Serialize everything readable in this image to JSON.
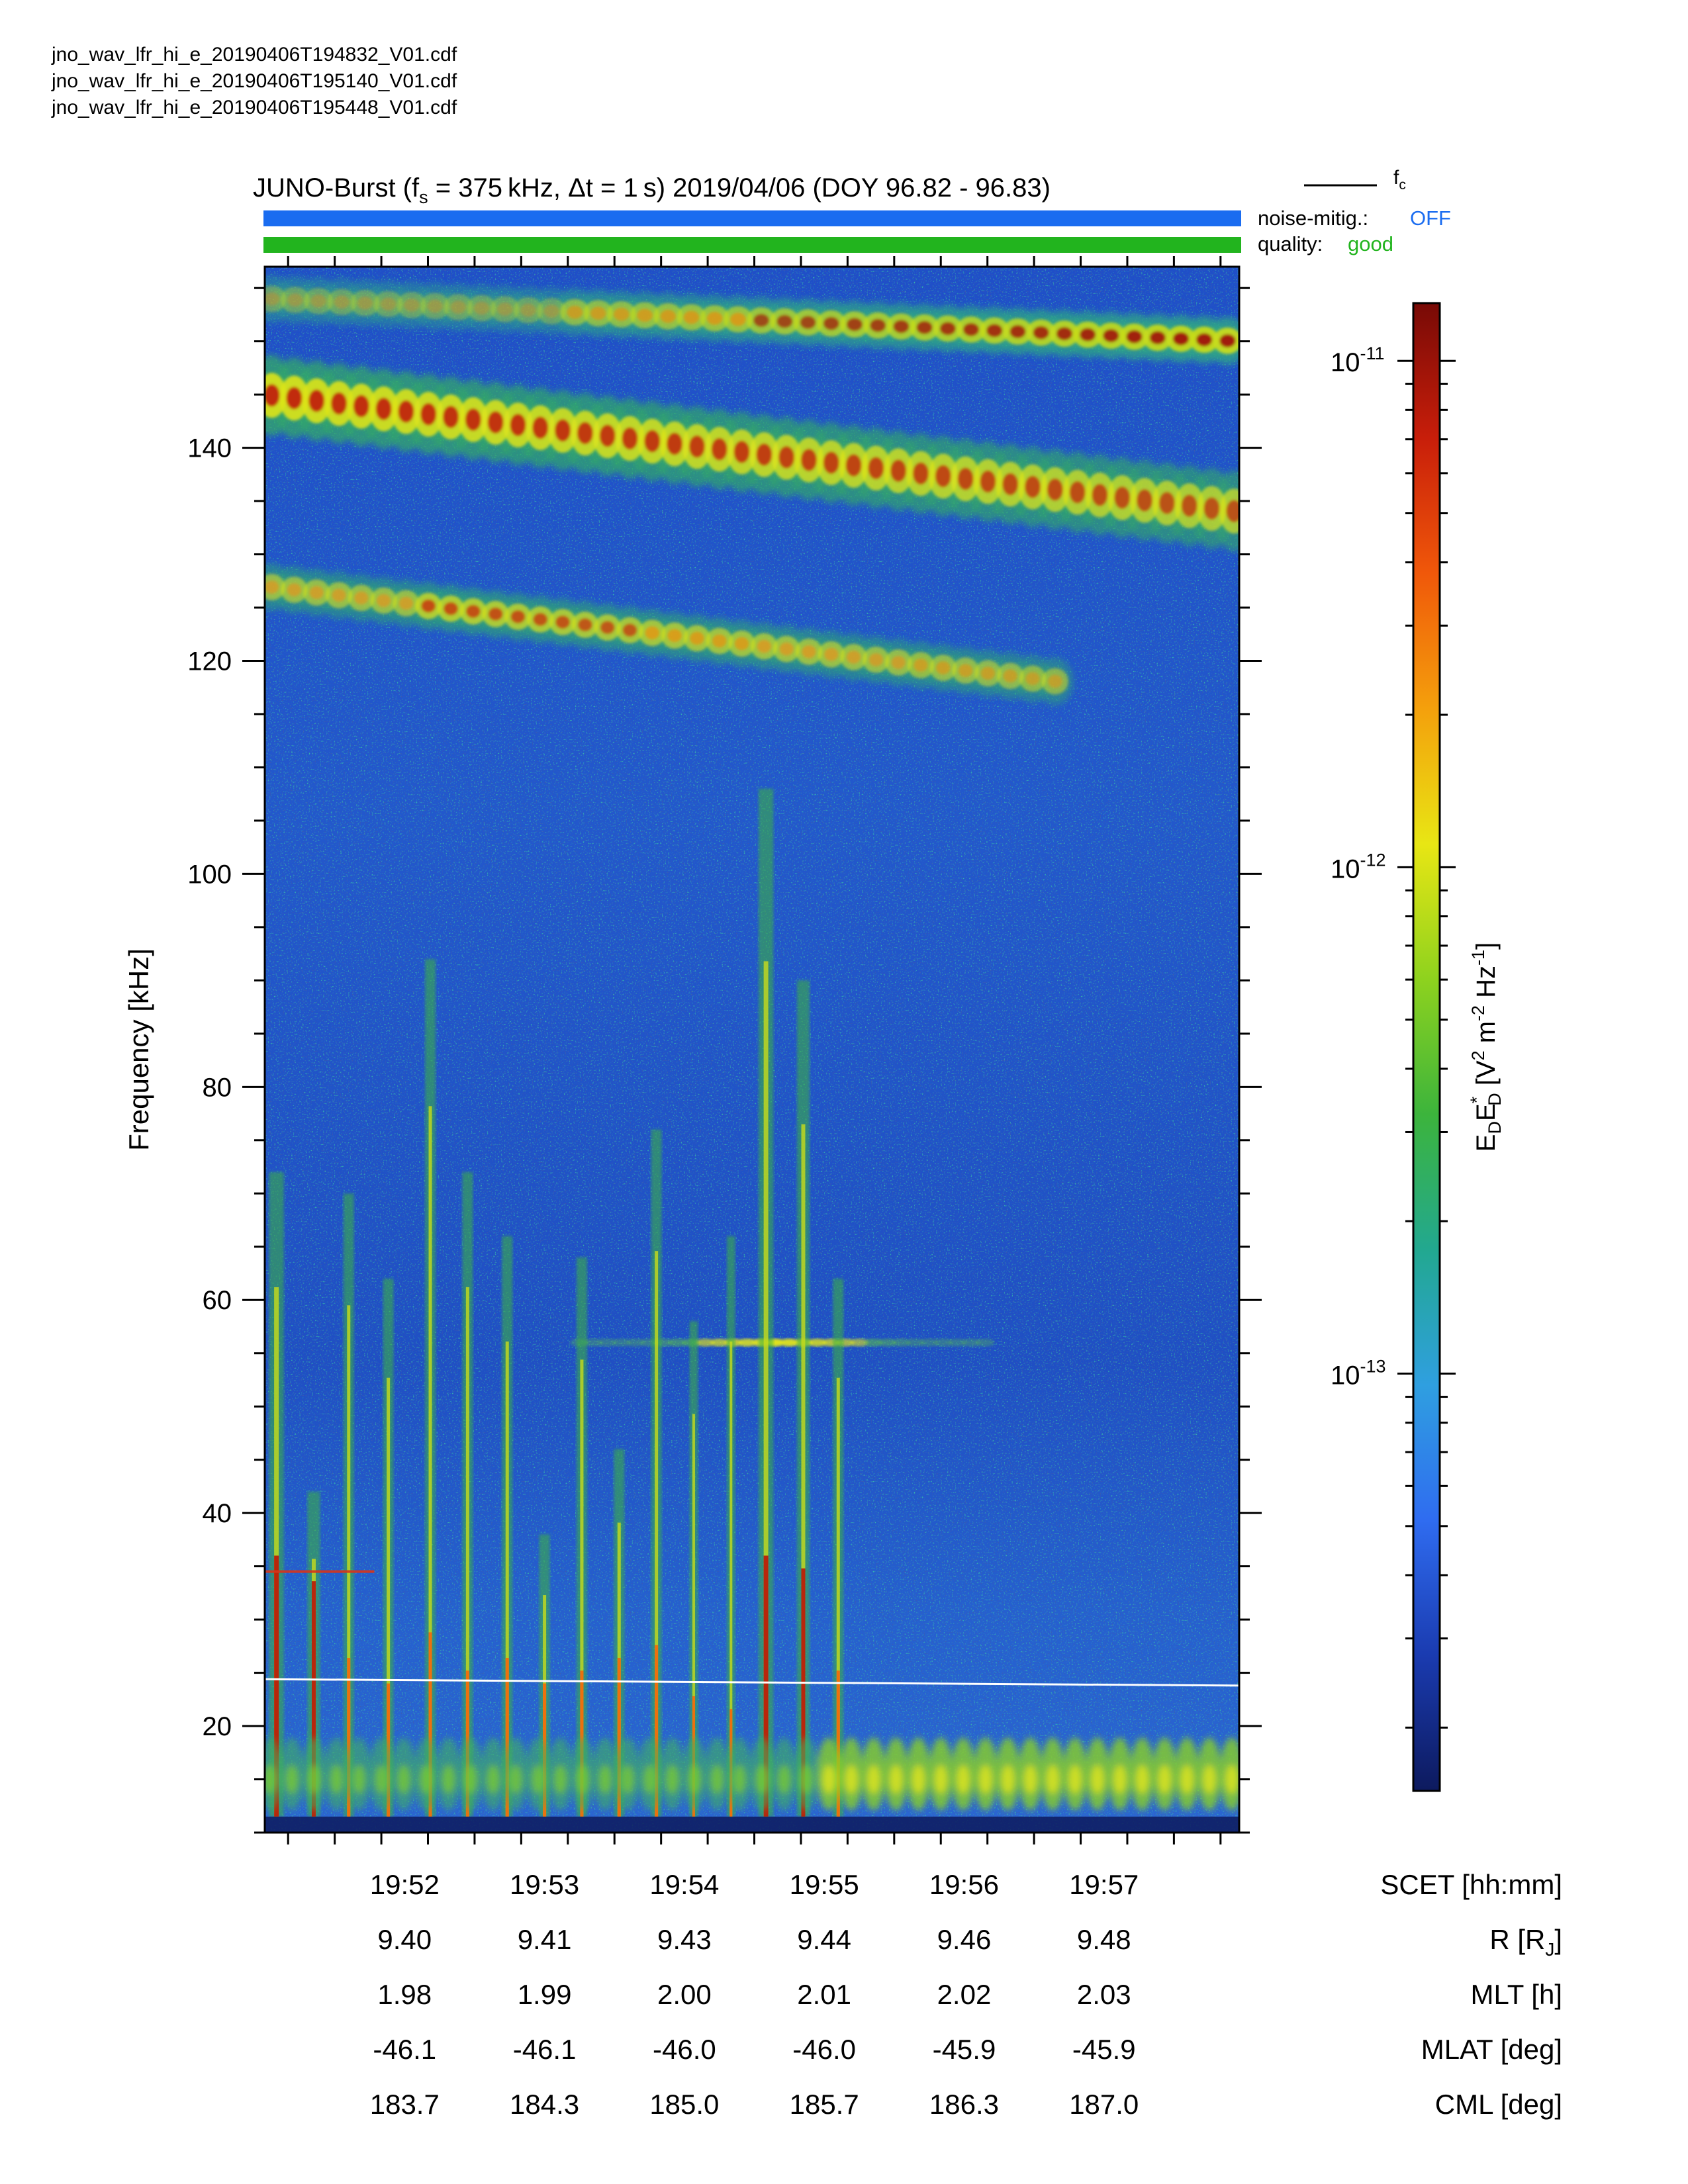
{
  "files": [
    "jno_wav_lfr_hi_e_20190406T194832_V01.cdf",
    "jno_wav_lfr_hi_e_20190406T195140_V01.cdf",
    "jno_wav_lfr_hi_e_20190406T195448_V01.cdf"
  ],
  "header": {
    "title_lead": "JUNO-Burst (f",
    "title_fs_sub": "s",
    "title_fs": " = 375 kHz, Δt = 1 s)  2019/04/06 (DOY 96.82 - 96.83)",
    "fc_legend": "f",
    "fc_sub": "c",
    "noise_label": "noise-mitig.:",
    "noise_value": "OFF",
    "quality_label": "quality:",
    "quality_value": "good"
  },
  "colors": {
    "noise_bar": "#1a6cf0",
    "quality_bar": "#22b41e",
    "noise_value": "#1a6cf0",
    "quality_value": "#22b41e",
    "fc_line": "#ffffff"
  },
  "chart_data": {
    "type": "heatmap",
    "title": "JUNO-Burst (fs = 375 kHz, Δt = 1 s)  2019/04/06 (DOY 96.82 - 96.83)",
    "ylabel": "Frequency [kHz]",
    "ylim": [
      10,
      157
    ],
    "yticks": [
      20,
      40,
      60,
      80,
      100,
      120,
      140
    ],
    "xlabel": "SCET [hh:mm]",
    "xlim": [
      "19:51:00",
      "19:57:58"
    ],
    "xtick_rows": [
      {
        "label": "SCET [hh:mm]",
        "values": [
          "19:52",
          "19:53",
          "19:54",
          "19:55",
          "19:56",
          "19:57"
        ]
      },
      {
        "label": "R [R",
        "label_sub": "J",
        "label_end": "]",
        "values": [
          "9.40",
          "9.41",
          "9.43",
          "9.44",
          "9.46",
          "9.48"
        ]
      },
      {
        "label": "MLT [h]",
        "values": [
          "1.98",
          "1.99",
          "2.00",
          "2.01",
          "2.02",
          "2.03"
        ]
      },
      {
        "label": "MLAT [deg]",
        "values": [
          "-46.1",
          "-46.1",
          "-46.0",
          "-46.0",
          "-45.9",
          "-45.9"
        ]
      },
      {
        "label": "CML [deg]",
        "values": [
          "183.7",
          "184.3",
          "185.0",
          "185.7",
          "186.3",
          "187.0"
        ]
      }
    ],
    "colorbar": {
      "label": "E_D E*_D [V^2 m^-2 Hz^-1]",
      "scale": "log",
      "range": [
        1.5e-14,
        1.3e-11
      ],
      "ticks": [
        {
          "value": 1e-11,
          "base": "10",
          "exp": "-11"
        },
        {
          "value": 1e-12,
          "base": "10",
          "exp": "-12"
        },
        {
          "value": 1e-13,
          "base": "10",
          "exp": "-13"
        }
      ],
      "colormap": [
        "#0d1a5e",
        "#1a3bb0",
        "#2f6cf0",
        "#2f9fe0",
        "#22a890",
        "#3cb43c",
        "#8ed21e",
        "#e8e614",
        "#f4a00c",
        "#f0580a",
        "#c81e0a",
        "#780a06"
      ]
    },
    "fc_line": {
      "name": "fc",
      "start_khz": 24.4,
      "end_khz": 23.8
    },
    "emission_bands": [
      {
        "name": "upper band",
        "start_khz": 154,
        "end_khz": 150
      },
      {
        "name": "second band",
        "start_khz": 145,
        "end_khz": 134
      },
      {
        "name": "third band",
        "start_khz": 127,
        "end_khz": 116
      },
      {
        "name": "narrow line",
        "start_time": "19:53:15",
        "end_time": "19:56:10",
        "khz": 56
      }
    ]
  }
}
